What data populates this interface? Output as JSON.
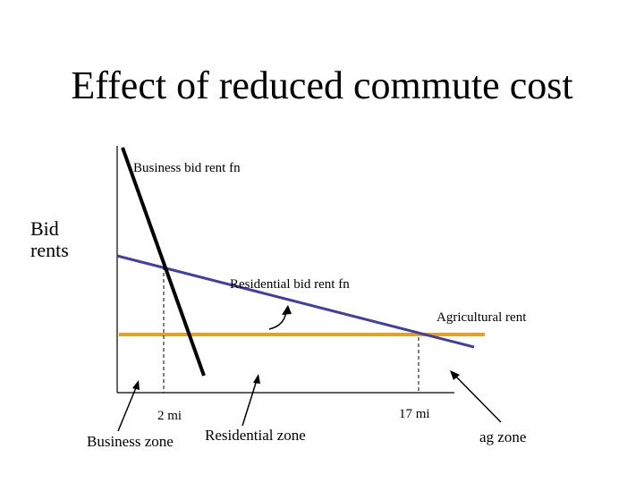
{
  "title": "Effect of reduced commute cost",
  "y_axis_label": "Bid\nrents",
  "labels": {
    "business_bid_rent": "Business bid rent fn",
    "residential_bid_rent": "Residential bid rent fn",
    "agricultural_rent": "Agricultural rent",
    "tick_2mi": "2 mi",
    "tick_17mi": "17 mi",
    "business_zone": "Business zone",
    "residential_zone": "Residential zone",
    "ag_zone": "ag zone"
  },
  "colors": {
    "business_line": "#000000",
    "residential_line": "#3f3fa6",
    "agricultural_line": "#e8a020",
    "axis": "#000000"
  }
}
